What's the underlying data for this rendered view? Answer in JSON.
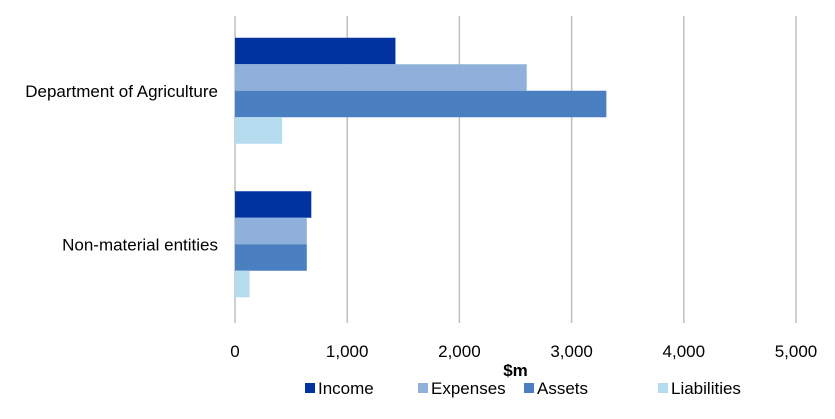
{
  "chart_data": {
    "type": "bar",
    "orientation": "horizontal",
    "categories": [
      "Department of Agriculture",
      "Non-material entities"
    ],
    "series": [
      {
        "name": "Income",
        "color": "#0033a0",
        "values": [
          1430,
          680
        ]
      },
      {
        "name": "Expenses",
        "color": "#8eb0db",
        "values": [
          2600,
          640
        ]
      },
      {
        "name": "Assets",
        "color": "#4a7fc1",
        "values": [
          3310,
          640
        ]
      },
      {
        "name": "Liabilities",
        "color": "#b5dcee",
        "values": [
          420,
          130
        ]
      }
    ],
    "xlabel": "$m",
    "xlim": [
      0,
      5000
    ],
    "xticks": [
      0,
      1000,
      2000,
      3000,
      4000,
      5000
    ],
    "xtick_labels": [
      "0",
      "1,000",
      "2,000",
      "3,000",
      "4,000",
      "5,000"
    ],
    "grid": true,
    "legend_position": "bottom"
  }
}
